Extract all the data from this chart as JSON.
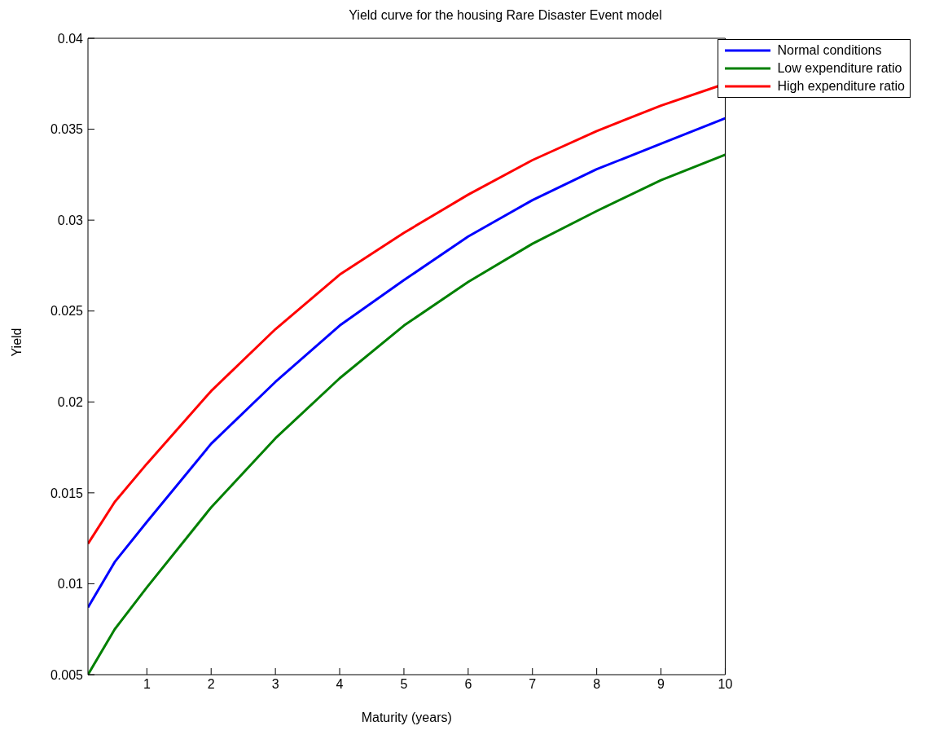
{
  "chart_data": {
    "type": "line",
    "title": "Yield curve for the housing Rare Disaster Event model",
    "xlabel": "Maturity (years)",
    "ylabel": "Yield",
    "x": [
      0.0833,
      0.5,
      1,
      2,
      3,
      4,
      5,
      6,
      7,
      8,
      9,
      10
    ],
    "series": [
      {
        "name": "Normal conditions",
        "color": "#0000ff",
        "values": [
          0.0087,
          0.0112,
          0.0134,
          0.0177,
          0.0211,
          0.0242,
          0.0267,
          0.0291,
          0.0311,
          0.0328,
          0.0342,
          0.0356
        ]
      },
      {
        "name": "Low expenditure ratio",
        "color": "#008000",
        "values": [
          0.005,
          0.0075,
          0.0098,
          0.0142,
          0.018,
          0.0213,
          0.0242,
          0.0266,
          0.0287,
          0.0305,
          0.0322,
          0.0336
        ]
      },
      {
        "name": "High expenditure ratio",
        "color": "#ff0000",
        "values": [
          0.0122,
          0.0145,
          0.0166,
          0.0206,
          0.024,
          0.027,
          0.0293,
          0.0314,
          0.0333,
          0.0349,
          0.0363,
          0.0375
        ]
      }
    ],
    "xlim": [
      0.0833,
      10
    ],
    "xticks": [
      1,
      2,
      3,
      4,
      5,
      6,
      7,
      8,
      9,
      10
    ],
    "ylim": [
      0.005,
      0.04
    ],
    "yticks": [
      0.005,
      0.01,
      0.015,
      0.02,
      0.025,
      0.03,
      0.035,
      0.04
    ],
    "grid": false,
    "legend": "top right",
    "marker": "none",
    "line_style": "solid"
  }
}
